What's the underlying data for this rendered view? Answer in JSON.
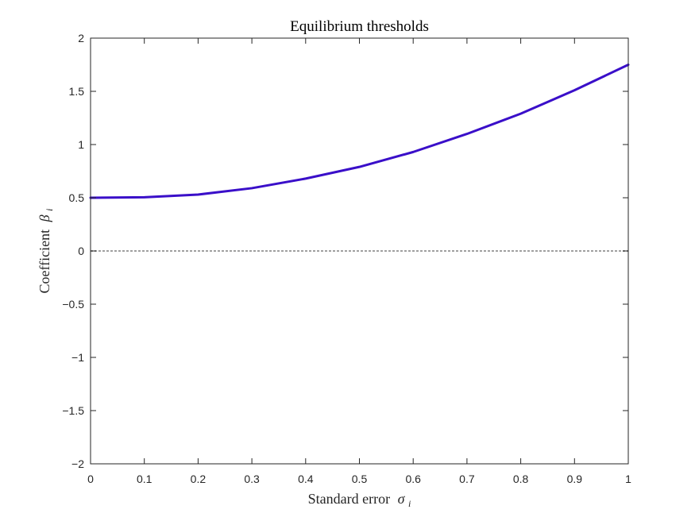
{
  "chart_data": {
    "type": "line",
    "title": "Equilibrium thresholds",
    "xlabel": "Standard error",
    "xlabel_symbol": "σ",
    "xlabel_subscript": "i",
    "ylabel": "Coefficient",
    "ylabel_symbol": "β",
    "ylabel_subscript": "i",
    "xlim": [
      0,
      1
    ],
    "ylim": [
      -2,
      2
    ],
    "x_ticks": [
      "0",
      "0.1",
      "0.2",
      "0.3",
      "0.4",
      "0.5",
      "0.6",
      "0.7",
      "0.8",
      "0.9",
      "1"
    ],
    "y_ticks": [
      "2",
      "1.5",
      "1",
      "0.5",
      "0",
      "−0.5",
      "−1",
      "−1.5",
      "−2"
    ],
    "grid": false,
    "series": [
      {
        "color": "#3a0fc9",
        "x": [
          0,
          0.1,
          0.2,
          0.3,
          0.4,
          0.5,
          0.6,
          0.7,
          0.8,
          0.9,
          1.0
        ],
        "y": [
          0.5,
          0.505,
          0.53,
          0.59,
          0.68,
          0.79,
          0.93,
          1.1,
          1.29,
          1.51,
          1.75
        ]
      }
    ],
    "reference_line": {
      "y": 0,
      "color": "#a0a0a0",
      "style": "dashed"
    }
  }
}
